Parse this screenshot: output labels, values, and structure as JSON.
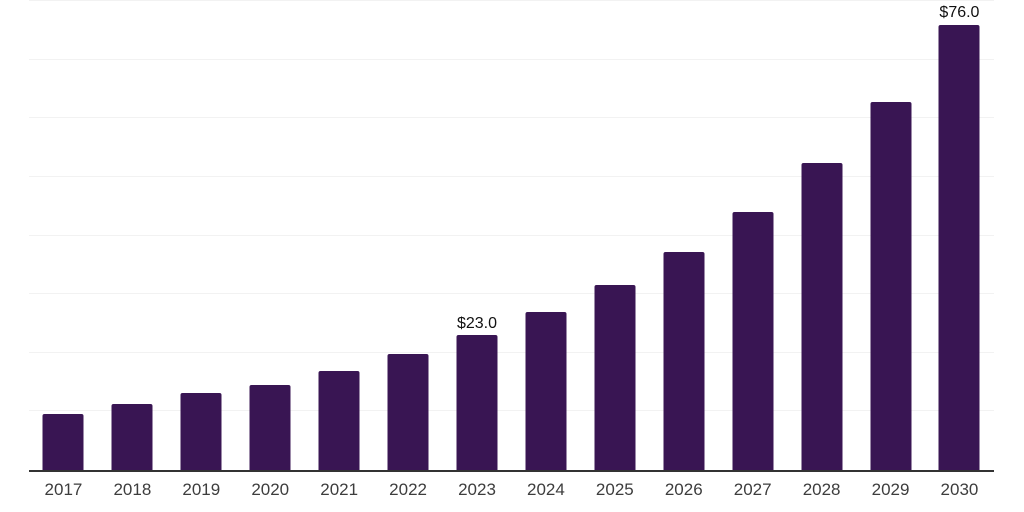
{
  "chart_data": {
    "type": "bar",
    "title": "",
    "categories": [
      "2017",
      "2018",
      "2019",
      "2020",
      "2021",
      "2022",
      "2023",
      "2024",
      "2025",
      "2026",
      "2027",
      "2028",
      "2029",
      "2030"
    ],
    "values": [
      9.6,
      11.3,
      13.1,
      14.5,
      16.9,
      19.8,
      23.0,
      26.9,
      31.6,
      37.2,
      44.0,
      52.3,
      62.8,
      76.0
    ],
    "labeled_points": [
      {
        "category": "2023",
        "label": "$23.0"
      },
      {
        "category": "2030",
        "label": "$76.0"
      }
    ],
    "xlabel": "",
    "ylabel": "",
    "ylim": [
      0,
      80
    ],
    "grid_step": 10,
    "grid": "horizontal-only",
    "legend_position": "none",
    "y_tick_labels_visible": false,
    "colors": {
      "bar": "#391553",
      "gridline": "#f2f2f2",
      "axis_line": "#333333",
      "x_tick_label": "#3d3d3d",
      "data_label": "#111111",
      "background": "#ffffff"
    }
  }
}
